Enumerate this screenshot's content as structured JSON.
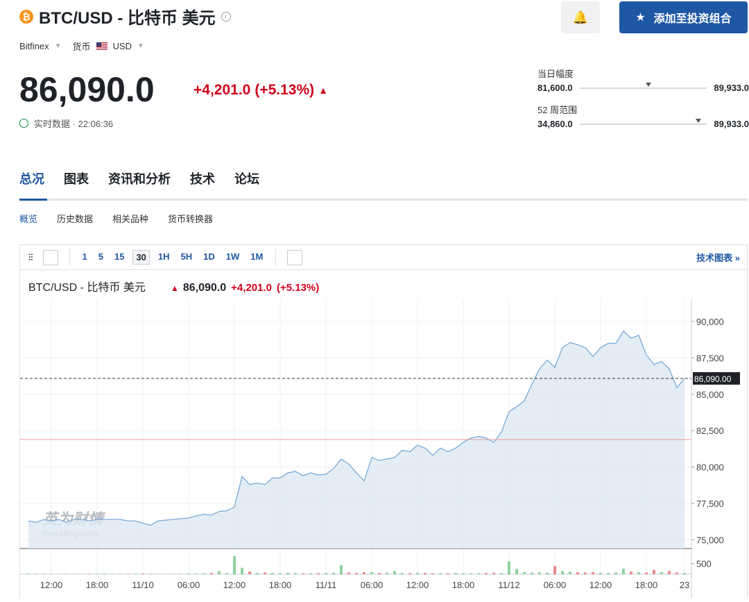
{
  "header": {
    "title": "BTC/USD - 比特币 美元",
    "exchange": "Bitfinex",
    "currency_label": "货币",
    "currency": "USD",
    "price": {
      "value": 86090,
      "label": "86,090.0"
    },
    "change": "+4,201.0",
    "change_pct": "(+5.13%)",
    "realtime": "实时数据 · 22:06:36",
    "add_button": "添加至投资组合",
    "day_range": {
      "label": "当日幅度",
      "low": {
        "value": 81600,
        "label": "81,600.0"
      },
      "high": {
        "value": 89933,
        "label": "89,933.0"
      }
    },
    "week52_range": {
      "label": "52 周范围",
      "low": {
        "value": 34860,
        "label": "34,860.0"
      },
      "high": {
        "value": 89933,
        "label": "89,933.0"
      }
    }
  },
  "tabs": [
    "总况",
    "图表",
    "资讯和分析",
    "技术",
    "论坛"
  ],
  "subtabs": [
    "概览",
    "历史数据",
    "相关品种",
    "货币转换器"
  ],
  "toolbar": {
    "intervals": [
      "1",
      "5",
      "15",
      "30",
      "1H",
      "5H",
      "1D",
      "1W",
      "1M"
    ],
    "link": "技术图表 »"
  },
  "watermark": {
    "brand": "英为财情",
    "site": "Investing.com"
  },
  "chart_data": {
    "type": "area",
    "title": "BTC/USD - 比特币 美元",
    "categories": [
      null,
      null,
      null,
      "12:00",
      null,
      null,
      null,
      null,
      null,
      "18:00",
      null,
      null,
      null,
      null,
      null,
      "11/10",
      null,
      null,
      null,
      null,
      null,
      "06:00",
      null,
      null,
      null,
      null,
      null,
      "12:00",
      null,
      null,
      null,
      null,
      null,
      "18:00",
      null,
      null,
      null,
      null,
      null,
      "11/11",
      null,
      null,
      null,
      null,
      null,
      "06:00",
      null,
      null,
      null,
      null,
      null,
      "12:00",
      null,
      null,
      null,
      null,
      null,
      "18:00",
      null,
      null,
      null,
      null,
      null,
      "11/12",
      null,
      null,
      null,
      null,
      null,
      "06:00",
      null,
      null,
      null,
      null,
      null,
      "12:00",
      null,
      null,
      null,
      null,
      null,
      "18:00",
      null,
      null,
      null,
      null,
      "23"
    ],
    "series": [
      {
        "name": "BTC/USD",
        "color": "#6fa3d4",
        "values": [
          76300,
          76200,
          76400,
          76300,
          76400,
          76200,
          76400,
          76400,
          76300,
          76400,
          76400,
          76400,
          76400,
          76300,
          76300,
          76150,
          76000,
          76300,
          76350,
          76400,
          76450,
          76500,
          76650,
          76750,
          76700,
          76950,
          77000,
          77250,
          79350,
          78800,
          78900,
          78800,
          79250,
          79250,
          79600,
          79700,
          79400,
          79600,
          79450,
          79500,
          79900,
          80550,
          80200,
          79600,
          79050,
          80650,
          80450,
          80550,
          80650,
          81150,
          81050,
          81500,
          81300,
          80800,
          81300,
          81050,
          81300,
          81700,
          82000,
          82100,
          82000,
          81700,
          82400,
          83800,
          84150,
          84550,
          85700,
          86750,
          87350,
          86850,
          88200,
          88550,
          88400,
          88200,
          87600,
          88200,
          88500,
          88500,
          89350,
          88850,
          89050,
          87700,
          87050,
          87250,
          86750,
          85450,
          86090
        ]
      }
    ],
    "volume": [
      30,
      20,
      25,
      20,
      15,
      20,
      20,
      15,
      20,
      25,
      30,
      20,
      15,
      20,
      25,
      30,
      20,
      20,
      15,
      20,
      25,
      30,
      30,
      40,
      60,
      150,
      60,
      850,
      300,
      120,
      60,
      80,
      60,
      50,
      70,
      60,
      40,
      40,
      50,
      60,
      70,
      420,
      80,
      60,
      90,
      100,
      60,
      70,
      150,
      60,
      50,
      70,
      60,
      40,
      50,
      40,
      60,
      50,
      40,
      50,
      60,
      70,
      60,
      600,
      250,
      100,
      80,
      90,
      70,
      380,
      150,
      120,
      90,
      80,
      100,
      70,
      60,
      80,
      260,
      120,
      90,
      80,
      200,
      100,
      150,
      80,
      60
    ],
    "volume_ylim": [
      0,
      1200
    ],
    "volume_ticks": [
      500
    ],
    "ylim": [
      74400,
      91050
    ],
    "yticks": [
      {
        "value": 75000,
        "label": "75,000"
      },
      {
        "value": 77500,
        "label": "77,500"
      },
      {
        "value": 80000,
        "label": "80,000"
      },
      {
        "value": 82500,
        "label": "82,500"
      },
      {
        "value": 85000,
        "label": "85,000"
      },
      {
        "value": 87500,
        "label": "87,500"
      },
      {
        "value": 90000,
        "label": "90,000"
      }
    ],
    "last_price": {
      "value": 86090,
      "label": "86,090.00"
    },
    "reference_line": 81889,
    "grid": true
  }
}
